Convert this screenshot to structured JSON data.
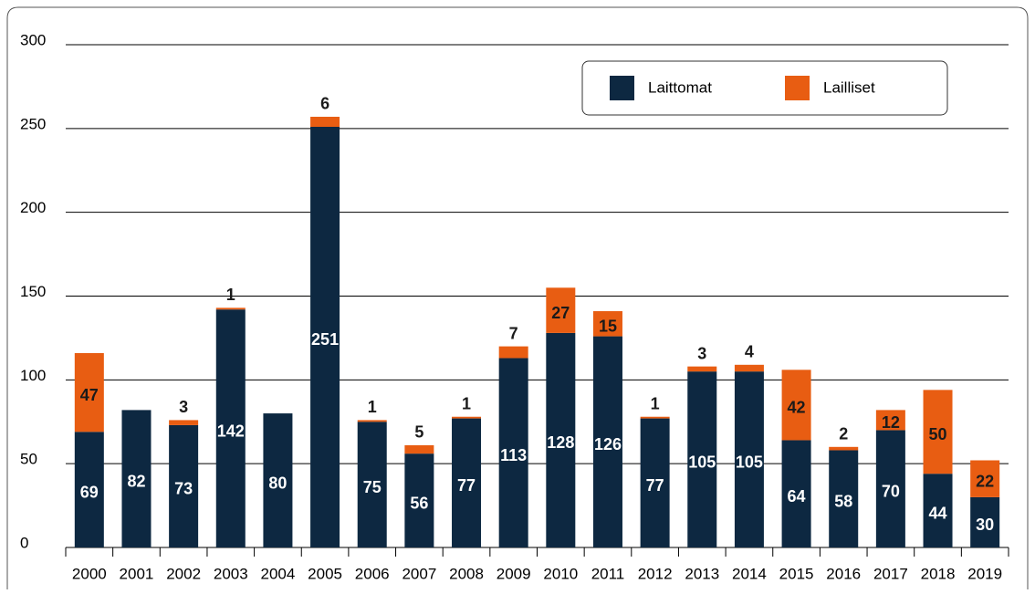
{
  "chart_data": {
    "type": "stacked-bar",
    "categories": [
      "2000",
      "2001",
      "2002",
      "2003",
      "2004",
      "2005",
      "2006",
      "2007",
      "2008",
      "2009",
      "2010",
      "2011",
      "2012",
      "2013",
      "2014",
      "2015",
      "2016",
      "2017",
      "2018",
      "2019"
    ],
    "series": [
      {
        "name": "Laittomat",
        "color": "#0d2841",
        "values": [
          69,
          82,
          73,
          142,
          80,
          251,
          75,
          56,
          77,
          113,
          128,
          126,
          77,
          105,
          105,
          64,
          58,
          70,
          44,
          30
        ]
      },
      {
        "name": "Lailliset",
        "color": "#e85d12",
        "values": [
          47,
          0,
          3,
          1,
          0,
          6,
          1,
          5,
          1,
          7,
          27,
          15,
          1,
          3,
          4,
          42,
          2,
          12,
          50,
          22
        ]
      }
    ],
    "ylim": [
      0,
      300
    ],
    "yticks": [
      0,
      50,
      100,
      150,
      200,
      250,
      300
    ],
    "grid": true,
    "legend": "top-right"
  }
}
